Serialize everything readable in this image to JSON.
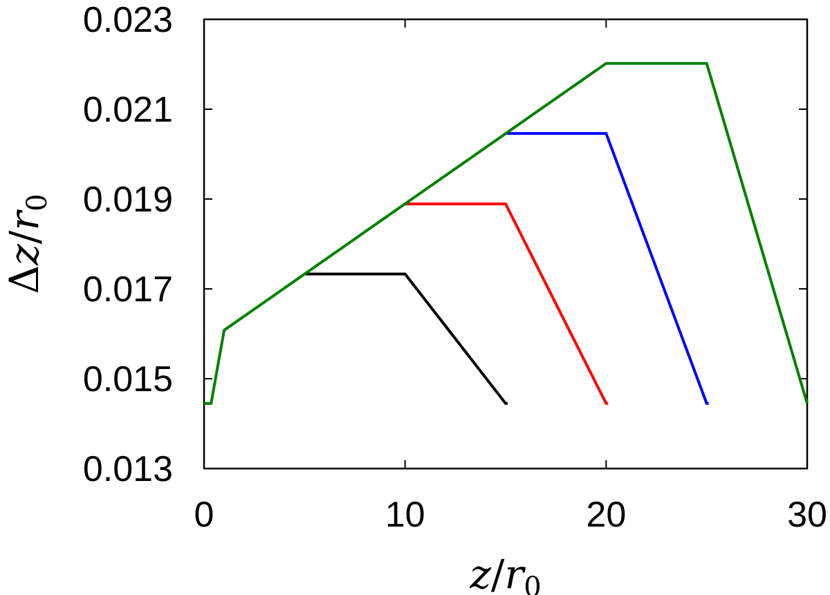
{
  "chart_data": {
    "type": "line",
    "title": "",
    "xlabel": {
      "var": "z",
      "slash": "/",
      "base": "r",
      "sub": "0"
    },
    "ylabel": {
      "delta": "Δ",
      "var": "z",
      "slash": "/",
      "base": "r",
      "sub": "0"
    },
    "xlim": [
      0,
      30
    ],
    "ylim": [
      0.013,
      0.023
    ],
    "xticks": [
      0,
      10,
      20,
      30
    ],
    "xtick_labels": [
      "0",
      "10",
      "20",
      "30"
    ],
    "yticks": [
      0.013,
      0.015,
      0.017,
      0.019,
      0.021,
      0.023
    ],
    "ytick_labels": [
      "0.013",
      "0.015",
      "0.017",
      "0.019",
      "0.021",
      "0.023"
    ],
    "grid": false,
    "legend": "none",
    "series": [
      {
        "color": "#000000",
        "x": [
          5,
          10,
          15,
          15.1
        ],
        "y": [
          0.01733,
          0.01733,
          0.01445,
          0.01445
        ]
      },
      {
        "color": "#ff0000",
        "x": [
          10,
          15,
          20,
          20.1
        ],
        "y": [
          0.01889,
          0.01889,
          0.01445,
          0.01445
        ]
      },
      {
        "color": "#0000ff",
        "x": [
          15,
          20,
          25,
          25.1
        ],
        "y": [
          0.02046,
          0.02046,
          0.01445,
          0.01445
        ]
      },
      {
        "color": "#008000",
        "x": [
          0,
          0.35,
          1,
          20,
          25,
          30
        ],
        "y": [
          0.01445,
          0.01445,
          0.01608,
          0.02202,
          0.02202,
          0.01445
        ]
      }
    ]
  }
}
